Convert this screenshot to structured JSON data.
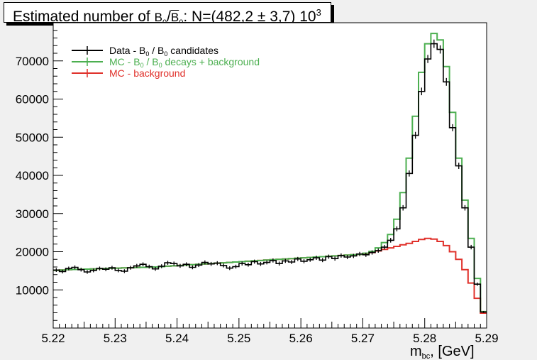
{
  "title": {
    "prefix": "Estimated number of ",
    "particle": "B",
    "sub1": "0",
    "slash": "/",
    "sub2": "0",
    "suffix": ": N=(482,2 ± 3,7) 10",
    "exponent": "3"
  },
  "chart_data": {
    "type": "line",
    "xlim": [
      5.22,
      5.29
    ],
    "ylim": [
      0,
      80000
    ],
    "x_ticks": [
      "5.22",
      "5.23",
      "5.24",
      "5.25",
      "5.26",
      "5.27",
      "5.28",
      "5.29"
    ],
    "y_ticks": [
      "10000",
      "20000",
      "30000",
      "40000",
      "50000",
      "60000",
      "70000"
    ],
    "xlabel": {
      "main": "m",
      "sub": "bc",
      "unit": ", [GeV]"
    },
    "legend": [
      {
        "label_pre": "Data - B",
        "label_sub1": "0",
        "label_mid": " / B",
        "label_sub2": "0",
        "label_post": " candidates"
      },
      {
        "label_pre": "MC - B",
        "label_sub1": "0",
        "label_mid": " / B",
        "label_sub2": "0",
        "label_post": " decays + background"
      },
      {
        "label_pre": "MC - background",
        "label_sub1": "",
        "label_mid": "",
        "label_sub2": "",
        "label_post": ""
      }
    ],
    "legend_position": "top-left",
    "colors": {
      "data": "#000000",
      "signal_mc": "#4caf50",
      "background_mc": "#e0302a"
    },
    "x_bins": [
      5.2205,
      5.2215,
      5.2225,
      5.2235,
      5.2245,
      5.2255,
      5.2265,
      5.2275,
      5.2285,
      5.2295,
      5.2305,
      5.2315,
      5.2325,
      5.2335,
      5.2345,
      5.2355,
      5.2365,
      5.2375,
      5.2385,
      5.2395,
      5.2405,
      5.2415,
      5.2425,
      5.2435,
      5.2445,
      5.2455,
      5.2465,
      5.2475,
      5.2485,
      5.2495,
      5.2505,
      5.2515,
      5.2525,
      5.2535,
      5.2545,
      5.2555,
      5.2565,
      5.2575,
      5.2585,
      5.2595,
      5.2605,
      5.2615,
      5.2625,
      5.2635,
      5.2645,
      5.2655,
      5.2665,
      5.2675,
      5.2685,
      5.2695,
      5.2705,
      5.2715,
      5.2725,
      5.2735,
      5.2745,
      5.2755,
      5.2765,
      5.2775,
      5.2785,
      5.2795,
      5.2805,
      5.2815,
      5.2825,
      5.2835,
      5.2845,
      5.2855,
      5.2865,
      5.2875,
      5.2885,
      5.2895
    ],
    "series": [
      {
        "name": "Data - B0 / B0 candidates",
        "values": [
          15200,
          14800,
          15600,
          15900,
          15300,
          14700,
          15100,
          15600,
          15400,
          15800,
          15100,
          14900,
          15800,
          16300,
          16700,
          16100,
          15500,
          16200,
          17100,
          16900,
          16300,
          16700,
          15900,
          16500,
          17200,
          16800,
          17000,
          16400,
          15700,
          16100,
          16900,
          16600,
          17400,
          16800,
          17200,
          17700,
          16900,
          17600,
          17300,
          18100,
          17500,
          17900,
          18400,
          17800,
          18700,
          18200,
          19000,
          18600,
          18900,
          19400,
          19200,
          19800,
          20300,
          21200,
          23000,
          26000,
          31500,
          40500,
          50500,
          62000,
          70500,
          74500,
          73000,
          64500,
          52500,
          42500,
          31500,
          21200,
          11500,
          4200
        ]
      },
      {
        "name": "MC - B0 / B0 decays + background",
        "values": [
          15100,
          15200,
          15300,
          15350,
          15400,
          15450,
          15500,
          15550,
          15600,
          15650,
          15700,
          15750,
          15800,
          15850,
          15900,
          15950,
          16000,
          16100,
          16200,
          16300,
          16400,
          16500,
          16600,
          16700,
          16800,
          16900,
          17000,
          17100,
          17200,
          17300,
          17400,
          17500,
          17600,
          17700,
          17800,
          17900,
          18000,
          18100,
          18200,
          18300,
          18400,
          18500,
          18600,
          18700,
          18800,
          18900,
          19000,
          19100,
          19200,
          19300,
          19600,
          20100,
          21000,
          22400,
          24500,
          28500,
          35500,
          44500,
          55500,
          67000,
          74500,
          77200,
          75500,
          68500,
          56500,
          44500,
          33500,
          23500,
          13000,
          4300
        ]
      },
      {
        "name": "MC - background",
        "values": [
          15100,
          15200,
          15300,
          15350,
          15400,
          15450,
          15500,
          15550,
          15600,
          15650,
          15700,
          15750,
          15800,
          15850,
          15900,
          15950,
          16000,
          16100,
          16200,
          16300,
          16400,
          16500,
          16600,
          16700,
          16800,
          16900,
          17000,
          17100,
          17200,
          17300,
          17400,
          17500,
          17600,
          17700,
          17800,
          17900,
          18000,
          18100,
          18200,
          18300,
          18400,
          18500,
          18600,
          18700,
          18800,
          18900,
          19000,
          19100,
          19200,
          19300,
          19500,
          19800,
          20200,
          20600,
          21000,
          21400,
          21800,
          22200,
          22700,
          23200,
          23500,
          23300,
          22700,
          21600,
          20000,
          18000,
          15300,
          11800,
          7800,
          3900
        ]
      }
    ]
  }
}
